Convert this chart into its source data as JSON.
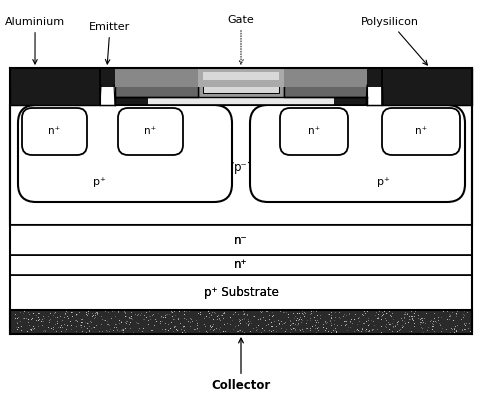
{
  "labels": {
    "aluminium": "Aluminium",
    "emitter": "Emitter",
    "gate": "Gate",
    "polysilicon": "Polysilicon",
    "n_plus": "n⁺",
    "p_plus": "p⁺",
    "p_minus": "p⁻",
    "n_minus": "n⁻",
    "n_plus_layer": "n⁺",
    "p_plus_substrate": "p⁺ Substrate",
    "collector": "Collector"
  },
  "colors": {
    "white": "#ffffff",
    "black": "#000000",
    "dark_metal": "#1a1a1a",
    "medium_gray": "#777777",
    "light_gray": "#cccccc",
    "poly_gray": "#888888",
    "substrate_dark": "#555555",
    "oxide_light": "#e8e8e8"
  },
  "figsize": [
    4.82,
    4.07
  ],
  "dpi": 100
}
